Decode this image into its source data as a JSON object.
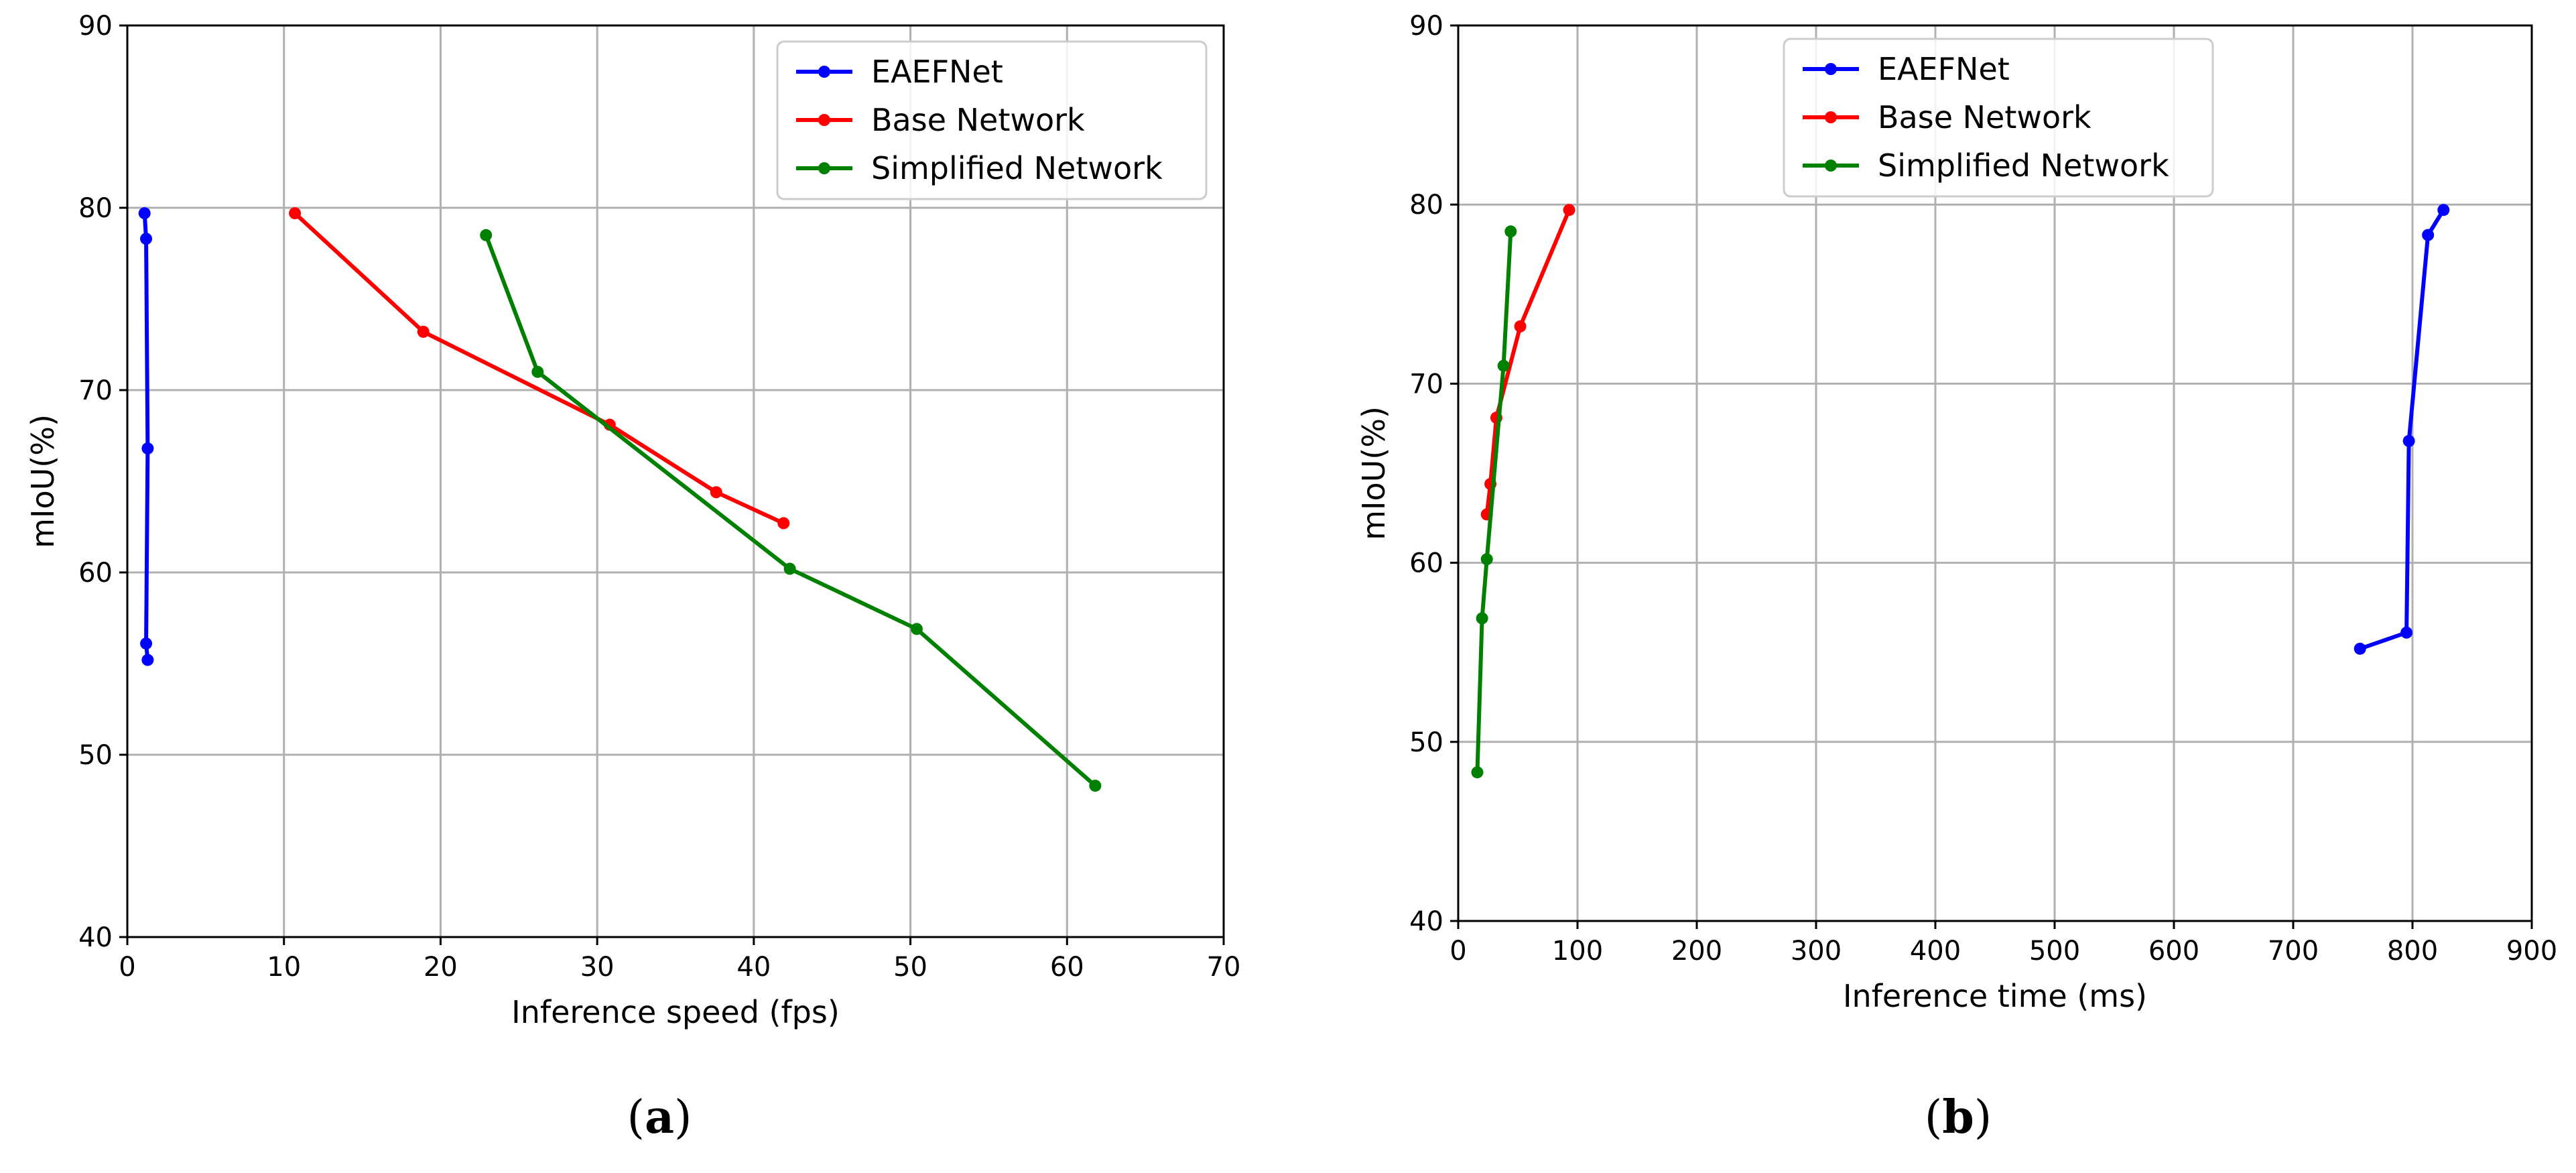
{
  "chart_data": [
    {
      "type": "line",
      "caption_label": "a",
      "xlabel": "Inference speed (fps)",
      "ylabel": "mIoU(%)",
      "xlim": [
        0,
        70
      ],
      "ylim": [
        40,
        90
      ],
      "xticks": [
        0,
        10,
        20,
        30,
        40,
        50,
        60,
        70
      ],
      "yticks": [
        40,
        50,
        60,
        70,
        80,
        90
      ],
      "grid": true,
      "legend_position": "top-right",
      "series": [
        {
          "name": "EAEFNet",
          "color": "#0000ff",
          "points": [
            [
              1.1,
              79.7
            ],
            [
              1.2,
              78.3
            ],
            [
              1.3,
              66.8
            ],
            [
              1.2,
              56.1
            ],
            [
              1.3,
              55.2
            ]
          ]
        },
        {
          "name": "Base Network",
          "color": "#ff0000",
          "points": [
            [
              10.7,
              79.7
            ],
            [
              18.9,
              73.2
            ],
            [
              30.8,
              68.1
            ],
            [
              37.6,
              64.4
            ],
            [
              41.9,
              62.7
            ]
          ]
        },
        {
          "name": "Simplified Network",
          "color": "#008000",
          "points": [
            [
              22.9,
              78.5
            ],
            [
              26.2,
              71.0
            ],
            [
              42.3,
              60.2
            ],
            [
              50.4,
              56.9
            ],
            [
              61.8,
              48.3
            ]
          ]
        }
      ]
    },
    {
      "type": "line",
      "caption_label": "b",
      "xlabel": "Inference time (ms)",
      "ylabel": "mIoU(%)",
      "xlim": [
        0,
        900
      ],
      "ylim": [
        40,
        90
      ],
      "xticks": [
        0,
        100,
        200,
        300,
        400,
        500,
        600,
        700,
        800,
        900
      ],
      "yticks": [
        40,
        50,
        60,
        70,
        80,
        90
      ],
      "grid": true,
      "legend_position": "top-center",
      "series": [
        {
          "name": "EAEFNet",
          "color": "#0000ff",
          "points": [
            [
              756,
              55.2
            ],
            [
              795,
              56.1
            ],
            [
              797,
              66.8
            ],
            [
              813,
              78.3
            ],
            [
              826,
              79.7
            ]
          ]
        },
        {
          "name": "Base Network",
          "color": "#ff0000",
          "points": [
            [
              24,
              62.7
            ],
            [
              27,
              64.4
            ],
            [
              32,
              68.1
            ],
            [
              52,
              73.2
            ],
            [
              93,
              79.7
            ]
          ]
        },
        {
          "name": "Simplified Network",
          "color": "#008000",
          "points": [
            [
              16,
              48.3
            ],
            [
              20,
              56.9
            ],
            [
              24,
              60.2
            ],
            [
              38,
              71.0
            ],
            [
              44,
              78.5
            ]
          ]
        }
      ]
    }
  ]
}
